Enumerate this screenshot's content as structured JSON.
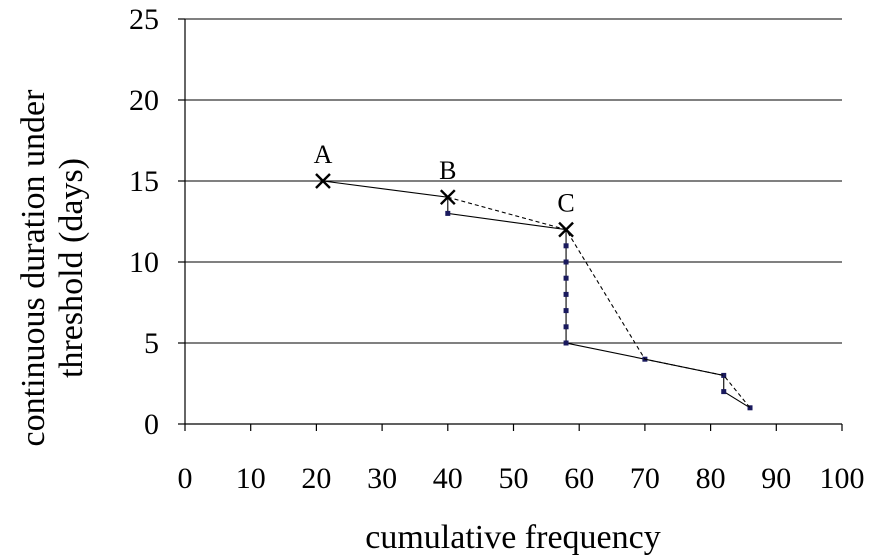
{
  "chart_data": {
    "type": "line",
    "title": "",
    "xlabel": "cumulative frequency",
    "ylabel_lines": [
      "continuous duration under",
      "threshold (days)"
    ],
    "xlim": [
      0,
      100
    ],
    "ylim": [
      0,
      25
    ],
    "x_ticks": [
      "0",
      "10",
      "20",
      "30",
      "40",
      "50",
      "60",
      "70",
      "80",
      "90",
      "100"
    ],
    "y_ticks": [
      "0",
      "5",
      "10",
      "15",
      "20",
      "25"
    ],
    "grid": "horizontal",
    "series": [
      {
        "style": "solid",
        "color": "#000000",
        "marker_color": "#1a1a5e",
        "points": [
          {
            "x": 21,
            "y": 15
          },
          {
            "x": 40,
            "y": 14
          },
          {
            "x": 40,
            "y": 13
          },
          {
            "x": 58,
            "y": 12
          },
          {
            "x": 58,
            "y": 11
          },
          {
            "x": 58,
            "y": 10
          },
          {
            "x": 58,
            "y": 9
          },
          {
            "x": 58,
            "y": 8
          },
          {
            "x": 58,
            "y": 7
          },
          {
            "x": 58,
            "y": 6
          },
          {
            "x": 58,
            "y": 5
          },
          {
            "x": 70,
            "y": 4
          },
          {
            "x": 82,
            "y": 3
          },
          {
            "x": 82,
            "y": 2
          },
          {
            "x": 86,
            "y": 1
          }
        ]
      },
      {
        "style": "dashed",
        "color": "#000000",
        "points": [
          {
            "x": 40,
            "y": 14
          },
          {
            "x": 58,
            "y": 12
          },
          {
            "x": 70,
            "y": 4
          },
          {
            "x": 82,
            "y": 3
          },
          {
            "x": 86,
            "y": 1
          }
        ]
      }
    ],
    "annotations": [
      {
        "label": "A",
        "x": 21,
        "y": 15
      },
      {
        "label": "B",
        "x": 40,
        "y": 14
      },
      {
        "label": "C",
        "x": 58,
        "y": 12
      }
    ]
  }
}
